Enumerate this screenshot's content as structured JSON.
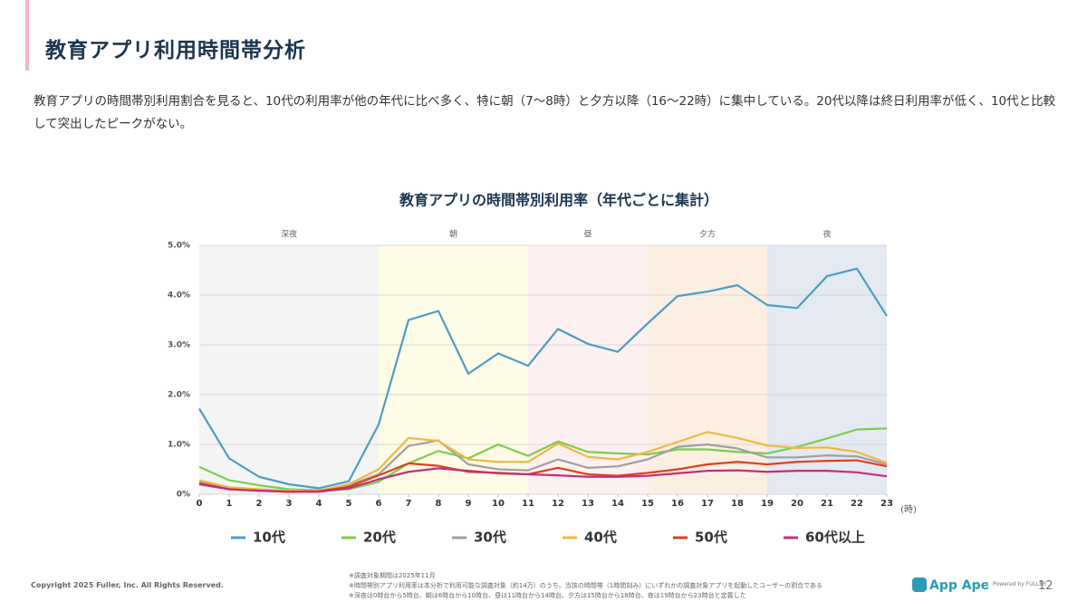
{
  "header": {
    "title": "教育アプリ利用時間帯分析"
  },
  "description": "教育アプリの時間帯別利用割合を見ると、10代の利用率が他の年代に比べ多く、特に朝（7〜8時）と夕方以降（16〜22時）に集中している。20代以降は終日利用率が低く、10代と比較して突出したピークがない。",
  "chart_data": {
    "type": "line",
    "title": "教育アプリの時間帯別利用率（年代ごとに集計）",
    "x_label": "(時)",
    "x": [
      0,
      1,
      2,
      3,
      4,
      5,
      6,
      7,
      8,
      9,
      10,
      11,
      12,
      13,
      14,
      15,
      16,
      17,
      18,
      19,
      20,
      21,
      22,
      23
    ],
    "xlim": [
      0,
      23
    ],
    "xticks": [
      0,
      1,
      2,
      3,
      4,
      5,
      6,
      7,
      8,
      9,
      10,
      11,
      12,
      13,
      14,
      15,
      16,
      17,
      18,
      19,
      20,
      21,
      22,
      23
    ],
    "ylim": [
      0,
      5
    ],
    "yticks": [
      {
        "value": 0,
        "label": "0%"
      },
      {
        "value": 1,
        "label": "1.0%"
      },
      {
        "value": 2,
        "label": "2.0%"
      },
      {
        "value": 3,
        "label": "3.0%"
      },
      {
        "value": 4,
        "label": "4.0%"
      },
      {
        "value": 5,
        "label": "5.0%"
      }
    ],
    "grid": true,
    "bands": [
      {
        "label": "深夜",
        "from": 0,
        "to": 6,
        "color": "#f4f4f4"
      },
      {
        "label": "朝",
        "from": 6,
        "to": 11,
        "color": "#fefbe6"
      },
      {
        "label": "昼",
        "from": 11,
        "to": 15,
        "color": "#fdf0f0"
      },
      {
        "label": "夕方",
        "from": 15,
        "to": 19,
        "color": "#fdeee2"
      },
      {
        "label": "夜",
        "from": 19,
        "to": 23,
        "color": "#e4e9f2"
      }
    ],
    "series": [
      {
        "name": "10代",
        "color": "#4a9ec4",
        "values": [
          1.72,
          0.72,
          0.35,
          0.2,
          0.12,
          0.26,
          1.4,
          3.5,
          3.68,
          2.42,
          2.83,
          2.58,
          3.32,
          3.02,
          2.86,
          3.43,
          3.98,
          4.07,
          4.2,
          3.8,
          3.74,
          4.38,
          4.53,
          3.58
        ]
      },
      {
        "name": "20代",
        "color": "#7ccd4e",
        "values": [
          0.55,
          0.28,
          0.18,
          0.1,
          0.08,
          0.1,
          0.25,
          0.62,
          0.87,
          0.72,
          1.0,
          0.77,
          1.06,
          0.85,
          0.82,
          0.8,
          0.9,
          0.9,
          0.85,
          0.82,
          0.95,
          1.12,
          1.3,
          1.32
        ]
      },
      {
        "name": "30代",
        "color": "#a0a0a0",
        "values": [
          0.25,
          0.12,
          0.08,
          0.06,
          0.06,
          0.18,
          0.4,
          0.97,
          1.08,
          0.6,
          0.5,
          0.48,
          0.7,
          0.53,
          0.56,
          0.7,
          0.95,
          1.0,
          0.92,
          0.74,
          0.74,
          0.78,
          0.76,
          0.6
        ]
      },
      {
        "name": "40代",
        "color": "#f0b840",
        "values": [
          0.28,
          0.14,
          0.1,
          0.07,
          0.07,
          0.2,
          0.5,
          1.13,
          1.07,
          0.7,
          0.65,
          0.65,
          1.02,
          0.75,
          0.7,
          0.85,
          1.05,
          1.25,
          1.13,
          0.98,
          0.93,
          0.94,
          0.85,
          0.63
        ]
      },
      {
        "name": "50代",
        "color": "#e0401c",
        "values": [
          0.22,
          0.1,
          0.07,
          0.05,
          0.06,
          0.15,
          0.38,
          0.62,
          0.57,
          0.45,
          0.43,
          0.4,
          0.53,
          0.4,
          0.37,
          0.43,
          0.5,
          0.6,
          0.65,
          0.6,
          0.65,
          0.67,
          0.68,
          0.56
        ]
      },
      {
        "name": "60代以上",
        "color": "#c0307a",
        "values": [
          0.2,
          0.1,
          0.07,
          0.05,
          0.05,
          0.12,
          0.3,
          0.45,
          0.52,
          0.47,
          0.42,
          0.4,
          0.38,
          0.35,
          0.35,
          0.37,
          0.42,
          0.47,
          0.48,
          0.45,
          0.47,
          0.47,
          0.44,
          0.36
        ]
      }
    ]
  },
  "footer": {
    "copyright": "Copyright 2025 Fuller, Inc. All Rights Reserved.",
    "notes": [
      "※調査対象期間は2025年11月",
      "※時間帯別アプリ利用率は本分析で利用可能な調査対象（約14万）のうち、当該の時間帯（1時間刻み）にいずれかの調査対象アプリを起動したユーザーの割合である",
      "※深夜は0時台から5時台、朝は6時台から10時台、昼は11時台から14時台、夕方は15時台から18時台、夜は19時台から23時台と定義した"
    ],
    "logo": "App Ape",
    "powered_by": "Powered by FULLER",
    "page": 12
  }
}
